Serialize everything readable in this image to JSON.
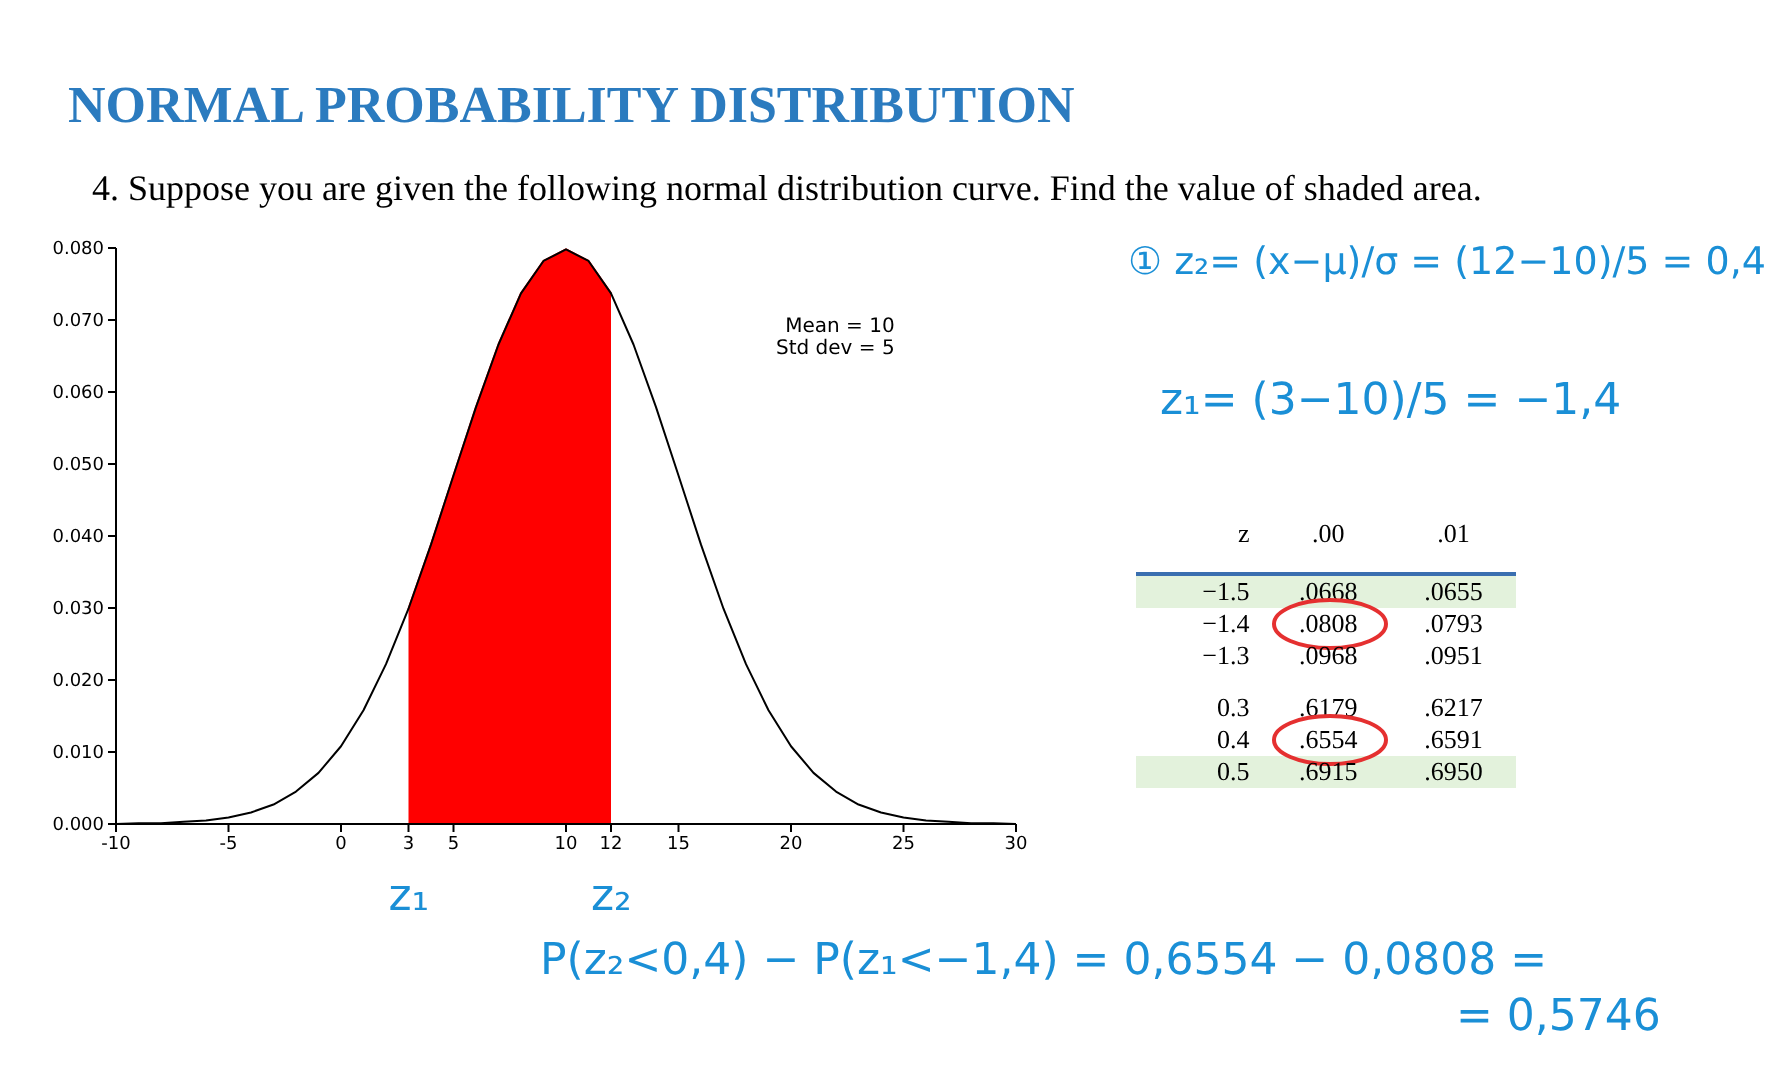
{
  "chart_data": {
    "type": "line",
    "title": "NORMAL PROBABILITY DISTRIBUTION",
    "subtitle": "4. Suppose you are given the following normal distribution curve. Find the value of shaded area.",
    "series": [
      {
        "type": "line",
        "color": "#000000",
        "x": [
          -10,
          -9,
          -8,
          -7,
          -6,
          -5,
          -4,
          -3,
          -2,
          -1,
          0,
          1,
          2,
          3,
          4,
          5,
          6,
          7,
          8,
          9,
          10,
          11,
          12,
          13,
          14,
          15,
          16,
          17,
          18,
          19,
          20,
          21,
          22,
          23,
          24,
          25,
          26,
          27,
          28,
          29,
          30
        ],
        "values": [
          0.0,
          0.0001,
          0.0001,
          0.0003,
          0.0005,
          0.0009,
          0.0016,
          0.0027,
          0.0045,
          0.0071,
          0.0108,
          0.0158,
          0.0222,
          0.0299,
          0.0388,
          0.0484,
          0.0579,
          0.0666,
          0.0737,
          0.0782,
          0.0798,
          0.0782,
          0.0737,
          0.0666,
          0.0579,
          0.0484,
          0.0388,
          0.0299,
          0.0222,
          0.0158,
          0.0108,
          0.0071,
          0.0045,
          0.0027,
          0.0016,
          0.0009,
          0.0005,
          0.0003,
          0.0001,
          0.0001,
          0.0
        ]
      },
      {
        "type": "area",
        "color": "#ff0000",
        "x": [
          3,
          4,
          5,
          6,
          7,
          8,
          9,
          10,
          11,
          12
        ],
        "values": [
          0.0299,
          0.0388,
          0.0484,
          0.0579,
          0.0666,
          0.0737,
          0.0782,
          0.0798,
          0.0782,
          0.0737
        ]
      }
    ],
    "xlim": [
      -10,
      30
    ],
    "xticks": [
      -10,
      -5,
      0,
      3,
      5,
      10,
      12,
      15,
      20,
      25,
      30
    ],
    "ylim": [
      0,
      0.08
    ],
    "yticks": [
      {
        "value": 0,
        "label": "0.000"
      },
      {
        "value": 0.01,
        "label": "0.010"
      },
      {
        "value": 0.02,
        "label": "0.020"
      },
      {
        "value": 0.03,
        "label": "0.030"
      },
      {
        "value": 0.04,
        "label": "0.040"
      },
      {
        "value": 0.05,
        "label": "0.050"
      },
      {
        "value": 0.06,
        "label": "0.060"
      },
      {
        "value": 0.07,
        "label": "0.070"
      },
      {
        "value": 0.08,
        "label": "0.080"
      }
    ],
    "grid": false,
    "marker": "none",
    "annotations": [
      "Mean = 10",
      "Std dev = 5",
      {
        "text": "z₁",
        "x": 3,
        "y": 0
      },
      {
        "text": "z₂",
        "x": 12,
        "y": 0
      },
      "① z₂= (x−μ)/σ = (12−10)/5 = 0,4",
      "z₁= (3−10)/5 = −1,4",
      "z .00 .01",
      "−1.5 .0668 .0655",
      "−1.4 .0808 .0793",
      "−1.3 .0968 .0951",
      "0.3 .6179 .6217",
      "0.4 .6554 .6591",
      "0.5 .6915 .6950",
      "P(z₂<0,4) − P(z₁<−1,4) = 0,6554 − 0,0808 =",
      "= 0,5746"
    ]
  }
}
